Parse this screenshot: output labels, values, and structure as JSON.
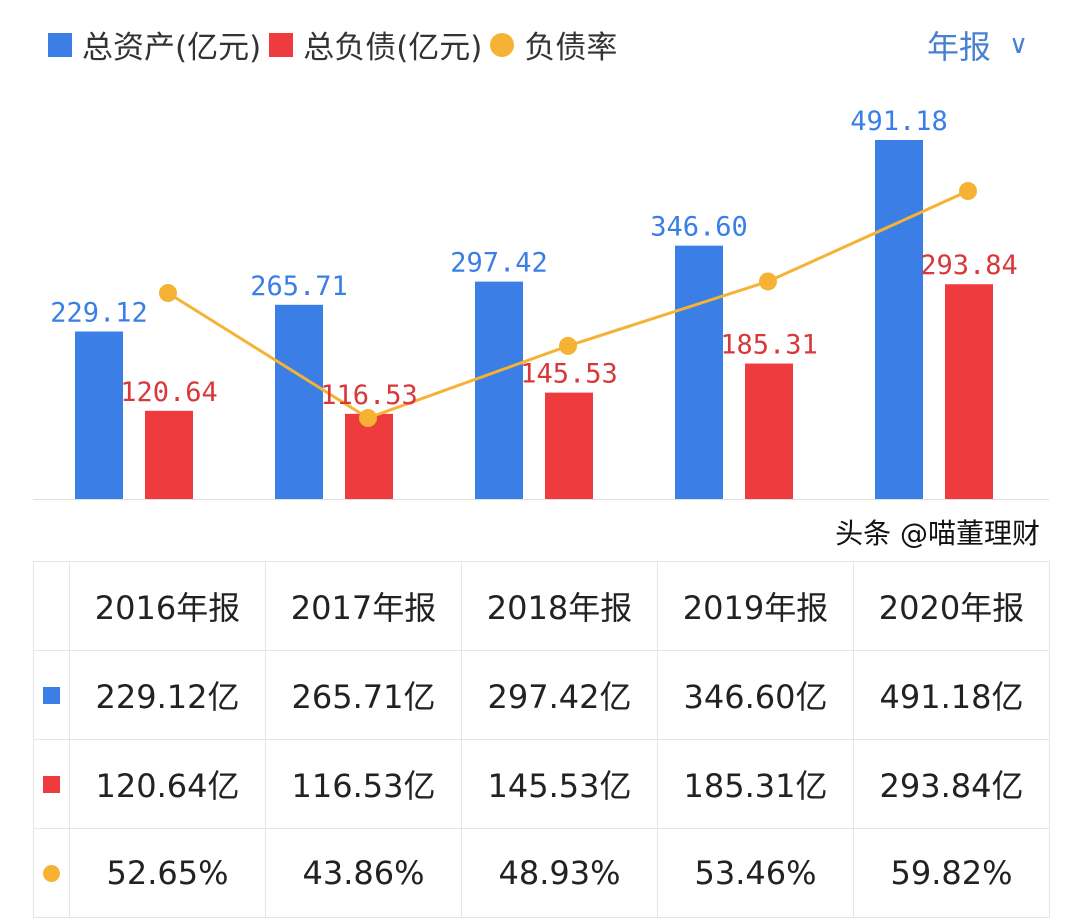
{
  "legend": [
    {
      "label": "总资产(亿元)",
      "color": "#3a7ee6",
      "shape": "square"
    },
    {
      "label": "总负债(亿元)",
      "color": "#ef3b3d",
      "shape": "square"
    },
    {
      "label": "负债率",
      "color": "#f5b234",
      "shape": "circle"
    }
  ],
  "period_selector": {
    "label": "年报",
    "icon": "chevron-down-icon"
  },
  "chart_data": {
    "type": "bar+line",
    "categories": [
      "2016年报",
      "2017年报",
      "2018年报",
      "2019年报",
      "2020年报"
    ],
    "series": [
      {
        "name": "总资产(亿元)",
        "type": "bar",
        "color": "#3a7ee6",
        "values": [
          229.12,
          265.71,
          297.42,
          346.6,
          491.18
        ],
        "labels": [
          "229.12",
          "265.71",
          "297.42",
          "346.60",
          "491.18"
        ]
      },
      {
        "name": "总负债(亿元)",
        "type": "bar",
        "color": "#ef3b3d",
        "values": [
          120.64,
          116.53,
          145.53,
          185.31,
          293.84
        ],
        "labels": [
          "120.64",
          "116.53",
          "145.53",
          "185.31",
          "293.84"
        ]
      },
      {
        "name": "负债率",
        "type": "line",
        "color": "#f5b234",
        "values": [
          52.65,
          43.86,
          48.93,
          53.46,
          59.82
        ]
      }
    ]
  },
  "table": {
    "headers": [
      "2016年报",
      "2017年报",
      "2018年报",
      "2019年报",
      "2020年报"
    ],
    "rows": [
      {
        "color": "#3a7ee6",
        "shape": "square",
        "cells": [
          "229.12亿",
          "265.71亿",
          "297.42亿",
          "346.60亿",
          "491.18亿"
        ]
      },
      {
        "color": "#ef3b3d",
        "shape": "square",
        "cells": [
          "120.64亿",
          "116.53亿",
          "145.53亿",
          "185.31亿",
          "293.84亿"
        ]
      },
      {
        "color": "#f5b234",
        "shape": "circle",
        "cells": [
          "52.65%",
          "43.86%",
          "48.93%",
          "53.46%",
          "59.82%"
        ]
      }
    ]
  },
  "watermark": "头条 @喵董理财"
}
